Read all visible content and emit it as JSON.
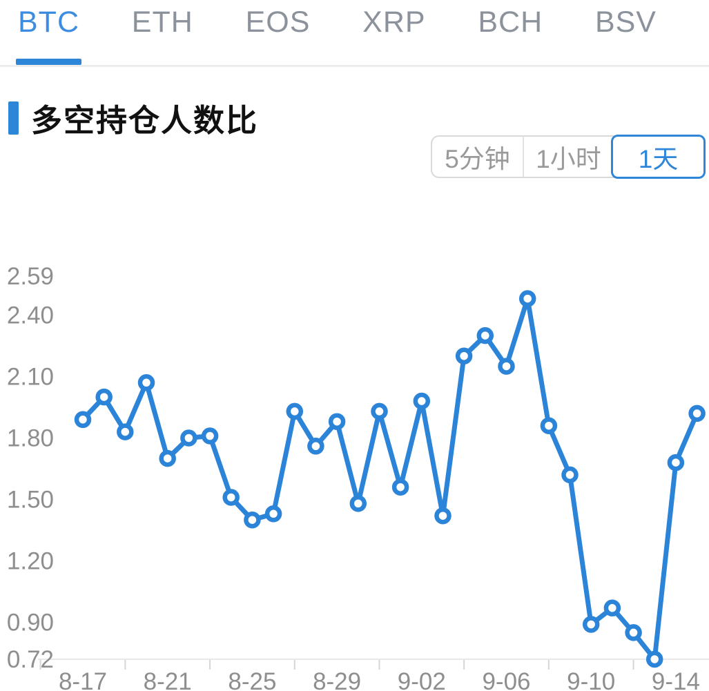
{
  "tabs": {
    "items": [
      {
        "label": "BTC",
        "active": true
      },
      {
        "label": "ETH",
        "active": false
      },
      {
        "label": "EOS",
        "active": false
      },
      {
        "label": "XRP",
        "active": false
      },
      {
        "label": "BCH",
        "active": false
      },
      {
        "label": "BSV",
        "active": false
      }
    ]
  },
  "section": {
    "title": "多空持仓人数比"
  },
  "period_selector": {
    "options": [
      {
        "label": "5分钟",
        "active": false
      },
      {
        "label": "1小时",
        "active": false
      },
      {
        "label": "1天",
        "active": true
      }
    ]
  },
  "chart_data": {
    "type": "line",
    "title": "多空持仓人数比",
    "series": [
      {
        "name": "多空持仓人数比",
        "x": [
          "8-17",
          "8-18",
          "8-19",
          "8-20",
          "8-21",
          "8-22",
          "8-23",
          "8-24",
          "8-25",
          "8-26",
          "8-27",
          "8-28",
          "8-29",
          "8-30",
          "8-31",
          "9-01",
          "9-02",
          "9-03",
          "9-04",
          "9-05",
          "9-06",
          "9-07",
          "9-08",
          "9-09",
          "9-10",
          "9-11",
          "9-12",
          "9-13",
          "9-14",
          "9-15"
        ],
        "values": [
          1.89,
          2.0,
          1.83,
          2.07,
          1.7,
          1.8,
          1.81,
          1.51,
          1.4,
          1.43,
          1.93,
          1.76,
          1.88,
          1.48,
          1.93,
          1.56,
          1.98,
          1.42,
          2.2,
          2.3,
          2.15,
          2.48,
          1.86,
          1.62,
          0.89,
          0.97,
          0.85,
          0.72,
          1.68,
          1.92
        ]
      }
    ],
    "x_tick_labels": [
      "8-17",
      "8-21",
      "8-25",
      "8-29",
      "9-02",
      "9-06",
      "9-10",
      "9-14"
    ],
    "y_tick_labels": [
      "2.59",
      "2.40",
      "2.10",
      "1.80",
      "1.50",
      "1.20",
      "0.90",
      "0.72"
    ],
    "ylim": [
      0.72,
      2.59
    ],
    "grid": false,
    "legend": "none",
    "marker": "open-circle"
  },
  "colors": {
    "line_blue": "#2b84d8",
    "accent_blue": "#2e86d8",
    "tab_active_blue": "#3c8ce0",
    "inactive_gray": "#8c929c",
    "axis_label_gray": "#8e8e8e",
    "axis_line_gray": "#e8e8e8",
    "tick_gray": "#d6d6d6"
  }
}
